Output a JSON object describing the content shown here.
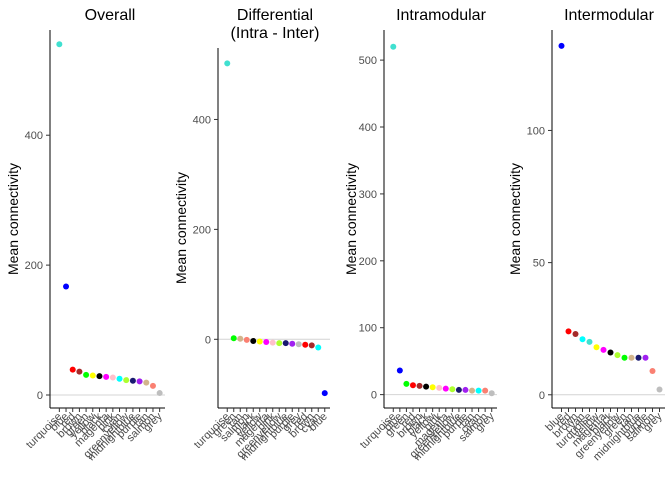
{
  "chart_data": [
    {
      "type": "scatter",
      "title": "Overall",
      "ylabel": "Mean connectivity",
      "ylim": [
        -20,
        562
      ],
      "yticks": [
        0,
        200,
        400
      ],
      "categories": [
        "turquoise",
        "blue",
        "red",
        "brown",
        "green",
        "yellow",
        "black",
        "magenta",
        "pink",
        "cyan",
        "greenyellow",
        "midnightblue",
        "purple",
        "tan",
        "salmon",
        "grey"
      ],
      "values": [
        540,
        167,
        39,
        36,
        31,
        30,
        29,
        28,
        27,
        25,
        23,
        22,
        21,
        19,
        14,
        3
      ],
      "colors": [
        "#40e0d0",
        "#0000ff",
        "#ff0000",
        "#a52a2a",
        "#00ff00",
        "#ffff00",
        "#000000",
        "#ff00ff",
        "#ffc0cb",
        "#00ffff",
        "#adff2f",
        "#191970",
        "#a020f0",
        "#d2b48c",
        "#fa8072",
        "#bebebe"
      ],
      "hline": 0
    },
    {
      "type": "scatter",
      "title": "Differential\n(Intra - Inter)",
      "ylabel": "Mean connectivity",
      "ylim": [
        -125,
        530
      ],
      "yticks": [
        0,
        200,
        400
      ],
      "categories": [
        "turquoise",
        "green",
        "tan",
        "salmon",
        "black",
        "yellow",
        "magenta",
        "pink",
        "greenyellow",
        "midnightblue",
        "purple",
        "grey",
        "red",
        "brown",
        "cyan",
        "blue"
      ],
      "values": [
        502,
        2,
        1,
        -1,
        -3,
        -4,
        -5,
        -6,
        -7,
        -7,
        -8,
        -9,
        -10,
        -11,
        -15,
        -98
      ],
      "colors": [
        "#40e0d0",
        "#00ff00",
        "#d2b48c",
        "#fa8072",
        "#000000",
        "#ffff00",
        "#ff00ff",
        "#ffc0cb",
        "#adff2f",
        "#191970",
        "#a020f0",
        "#bebebe",
        "#ff0000",
        "#a52a2a",
        "#00ffff",
        "#0000ff"
      ],
      "hline": 0
    },
    {
      "type": "scatter",
      "title": "Intramodular",
      "ylabel": "Mean connectivity",
      "ylim": [
        -20,
        545
      ],
      "yticks": [
        0,
        100,
        200,
        300,
        400,
        500
      ],
      "categories": [
        "turquoise",
        "blue",
        "green",
        "red",
        "brown",
        "black",
        "yellow",
        "pink",
        "magenta",
        "greenyellow",
        "midnightblue",
        "purple",
        "tan",
        "cyan",
        "salmon",
        "grey"
      ],
      "values": [
        520,
        36,
        16,
        14,
        13,
        12,
        11,
        10,
        9,
        8,
        7,
        7,
        6,
        6,
        6,
        2
      ],
      "colors": [
        "#40e0d0",
        "#0000ff",
        "#00ff00",
        "#ff0000",
        "#a52a2a",
        "#000000",
        "#ffff00",
        "#ffc0cb",
        "#ff00ff",
        "#adff2f",
        "#191970",
        "#a020f0",
        "#d2b48c",
        "#00ffff",
        "#fa8072",
        "#bebebe"
      ],
      "hline": 0
    },
    {
      "type": "scatter",
      "title": "Intermodular",
      "ylabel": "Mean connectivity",
      "ylim": [
        -5,
        138
      ],
      "yticks": [
        0,
        50,
        100
      ],
      "categories": [
        "blue",
        "red",
        "brown",
        "cyan",
        "turquoise",
        "yellow",
        "magenta",
        "black",
        "greenyellow",
        "green",
        "tan",
        "midnightblue",
        "purple",
        "salmon",
        "grey"
      ],
      "values": [
        132,
        24,
        23,
        21,
        20,
        18,
        17,
        16,
        15,
        14,
        14,
        14,
        14,
        9,
        2
      ],
      "colors": [
        "#0000ff",
        "#ff0000",
        "#a52a2a",
        "#00ffff",
        "#40e0d0",
        "#ffff00",
        "#ff00ff",
        "#000000",
        "#adff2f",
        "#00ff00",
        "#d2b48c",
        "#191970",
        "#a020f0",
        "#fa8072",
        "#bebebe"
      ],
      "hline": 0
    }
  ]
}
